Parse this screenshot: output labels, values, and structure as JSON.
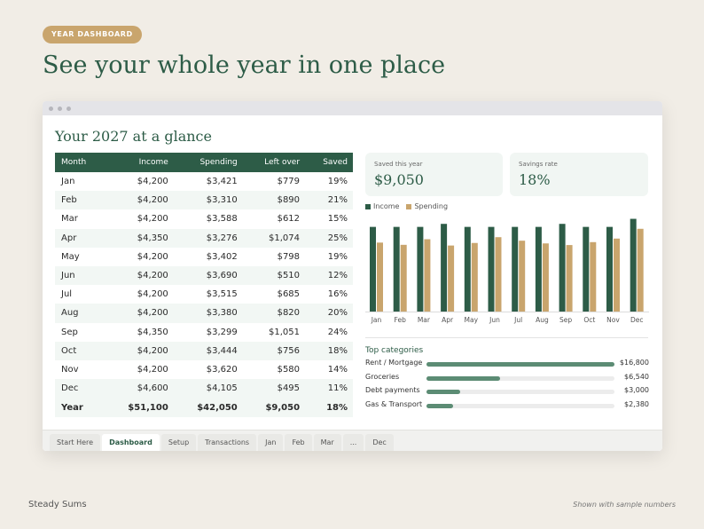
{
  "badge": "YEAR DASHBOARD",
  "headline": "See your whole year in one place",
  "sheet_title": "Your 2027 at a glance",
  "table": {
    "headers": [
      "Month",
      "Income",
      "Spending",
      "Left over",
      "Saved"
    ],
    "rows": [
      [
        "Jan",
        "$4,200",
        "$3,421",
        "$779",
        "19%"
      ],
      [
        "Feb",
        "$4,200",
        "$3,310",
        "$890",
        "21%"
      ],
      [
        "Mar",
        "$4,200",
        "$3,588",
        "$612",
        "15%"
      ],
      [
        "Apr",
        "$4,350",
        "$3,276",
        "$1,074",
        "25%"
      ],
      [
        "May",
        "$4,200",
        "$3,402",
        "$798",
        "19%"
      ],
      [
        "Jun",
        "$4,200",
        "$3,690",
        "$510",
        "12%"
      ],
      [
        "Jul",
        "$4,200",
        "$3,515",
        "$685",
        "16%"
      ],
      [
        "Aug",
        "$4,200",
        "$3,380",
        "$820",
        "20%"
      ],
      [
        "Sep",
        "$4,350",
        "$3,299",
        "$1,051",
        "24%"
      ],
      [
        "Oct",
        "$4,200",
        "$3,444",
        "$756",
        "18%"
      ],
      [
        "Nov",
        "$4,200",
        "$3,620",
        "$580",
        "14%"
      ],
      [
        "Dec",
        "$4,600",
        "$4,105",
        "$495",
        "11%"
      ]
    ],
    "total": [
      "Year",
      "$51,100",
      "$42,050",
      "$9,050",
      "18%"
    ]
  },
  "cards": {
    "saved_label": "Saved this year",
    "saved_value": "$9,050",
    "rate_label": "Savings rate",
    "rate_value": "18%"
  },
  "colors": {
    "income": "#2d5c47",
    "spending": "#c9a56d",
    "accent": "#2d5c47"
  },
  "chart_data": {
    "type": "bar",
    "categories": [
      "Jan",
      "Feb",
      "Mar",
      "Apr",
      "May",
      "Jun",
      "Jul",
      "Aug",
      "Sep",
      "Oct",
      "Nov",
      "Dec"
    ],
    "series": [
      {
        "name": "Income",
        "values": [
          4200,
          4200,
          4200,
          4350,
          4200,
          4200,
          4200,
          4200,
          4350,
          4200,
          4200,
          4600
        ]
      },
      {
        "name": "Spending",
        "values": [
          3421,
          3310,
          3588,
          3276,
          3402,
          3690,
          3515,
          3380,
          3299,
          3444,
          3620,
          4105
        ]
      }
    ],
    "ylim": [
      0,
      4800
    ],
    "legend": "top-left",
    "grid": false
  },
  "categories": {
    "title": "Top categories",
    "items": [
      {
        "name": "Rent / Mortgage",
        "amount": "$16,800",
        "share": 1.0
      },
      {
        "name": "Groceries",
        "amount": "$6,540",
        "share": 0.39
      },
      {
        "name": "Debt payments",
        "amount": "$3,000",
        "share": 0.18
      },
      {
        "name": "Gas & Transport",
        "amount": "$2,380",
        "share": 0.14
      }
    ]
  },
  "tabs": [
    {
      "label": "Start Here",
      "active": false
    },
    {
      "label": "Dashboard",
      "active": true
    },
    {
      "label": "Setup",
      "active": false
    },
    {
      "label": "Transactions",
      "active": false
    },
    {
      "label": "Jan",
      "active": false
    },
    {
      "label": "Feb",
      "active": false
    },
    {
      "label": "Mar",
      "active": false
    },
    {
      "label": "...",
      "active": false
    },
    {
      "label": "Dec",
      "active": false
    }
  ],
  "footer": {
    "brand": "Steady Sums",
    "note": "Shown with sample numbers"
  }
}
